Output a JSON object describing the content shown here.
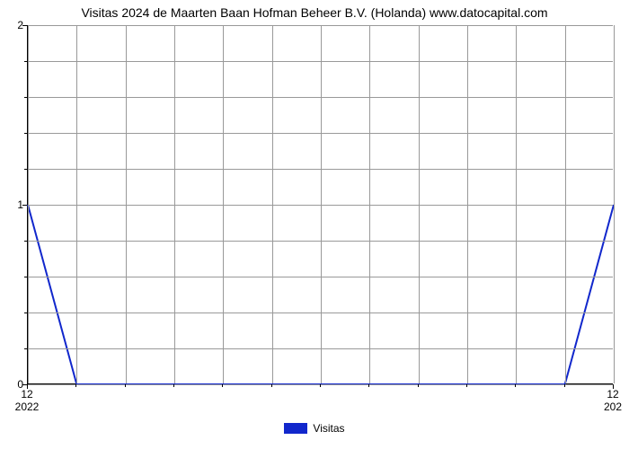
{
  "chart": {
    "type": "line",
    "title": "Visitas 2024 de Maarten Baan Hofman Beheer B.V. (Holanda) www.datocapital.com",
    "title_fontsize": 14,
    "background_color": "#ffffff",
    "grid_color": "#999999",
    "line_color": "#1127cc",
    "line_width": 2,
    "xlim": [
      0,
      12
    ],
    "ylim": [
      0,
      2
    ],
    "x_major_ticks": [
      0,
      12
    ],
    "x_major_labels": [
      "12",
      "12"
    ],
    "x_sub_labels": [
      "2022",
      "202"
    ],
    "x_minor_step": 1,
    "x_grid_step": 1,
    "y_major_ticks": [
      0,
      1,
      2
    ],
    "y_major_labels": [
      "0",
      "1",
      "2"
    ],
    "y_minor_step": 0.2,
    "data_x": [
      0,
      1,
      2,
      3,
      4,
      5,
      6,
      7,
      8,
      9,
      10,
      11,
      12
    ],
    "data_y": [
      1,
      0,
      0,
      0,
      0,
      0,
      0,
      0,
      0,
      0,
      0,
      0,
      1
    ],
    "legend_label": "Visitas"
  }
}
